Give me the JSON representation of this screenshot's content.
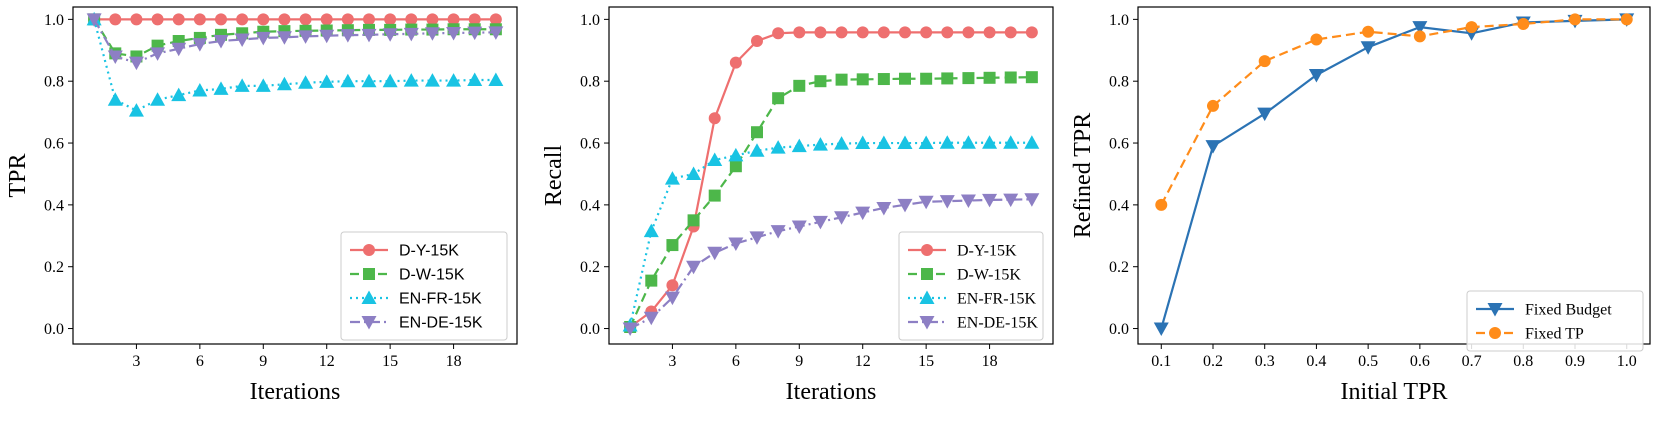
{
  "chart_data": [
    {
      "type": "line",
      "xlabel": "Iterations",
      "ylabel": "TPR",
      "xlim": [
        0,
        21
      ],
      "ylim": [
        -0.05,
        1.04
      ],
      "xticks": [
        3,
        6,
        9,
        12,
        15,
        18
      ],
      "yticks": [
        0.0,
        0.2,
        0.4,
        0.6,
        0.8,
        1.0
      ],
      "ytick_format": 1,
      "legend_position": "lower right",
      "x": [
        1,
        2,
        3,
        4,
        5,
        6,
        7,
        8,
        9,
        10,
        11,
        12,
        13,
        14,
        15,
        16,
        17,
        18,
        19,
        20
      ],
      "series": [
        {
          "name": "D-Y-15K",
          "color": "#ee6f6f",
          "marker": "circle",
          "linestyle": "solid",
          "values": [
            1.0,
            1.0,
            1.0,
            1.0,
            1.0,
            1.0,
            1.0,
            1.0,
            1.0,
            1.0,
            1.0,
            1.0,
            1.0,
            1.0,
            1.0,
            1.0,
            1.0,
            1.0,
            1.0,
            1.0
          ]
        },
        {
          "name": "D-W-15K",
          "color": "#4db74a",
          "marker": "square",
          "linestyle": "dashed",
          "values": [
            1.0,
            0.89,
            0.88,
            0.915,
            0.93,
            0.94,
            0.95,
            0.955,
            0.96,
            0.962,
            0.963,
            0.964,
            0.965,
            0.966,
            0.966,
            0.967,
            0.967,
            0.968,
            0.968,
            0.968
          ]
        },
        {
          "name": "EN-FR-15K",
          "color": "#19c3e3",
          "marker": "triangle-up",
          "linestyle": "dotted",
          "values": [
            1.0,
            0.74,
            0.705,
            0.74,
            0.755,
            0.77,
            0.775,
            0.785,
            0.785,
            0.79,
            0.795,
            0.798,
            0.8,
            0.8,
            0.8,
            0.802,
            0.802,
            0.802,
            0.804,
            0.804
          ]
        },
        {
          "name": "EN-DE-15K",
          "color": "#8d7fc4",
          "marker": "triangle-down",
          "linestyle": "dashdot",
          "values": [
            1.0,
            0.88,
            0.86,
            0.89,
            0.905,
            0.92,
            0.93,
            0.935,
            0.94,
            0.942,
            0.945,
            0.947,
            0.949,
            0.95,
            0.952,
            0.953,
            0.955,
            0.956,
            0.957,
            0.958
          ]
        }
      ]
    },
    {
      "type": "line",
      "xlabel": "Iterations",
      "ylabel": "Recall",
      "xlim": [
        0,
        21
      ],
      "ylim": [
        -0.05,
        1.04
      ],
      "xticks": [
        3,
        6,
        9,
        12,
        15,
        18
      ],
      "yticks": [
        0.0,
        0.2,
        0.4,
        0.6,
        0.8,
        1.0
      ],
      "ytick_format": 1,
      "legend_position": "lower right",
      "x": [
        1,
        2,
        3,
        4,
        5,
        6,
        7,
        8,
        9,
        10,
        11,
        12,
        13,
        14,
        15,
        16,
        17,
        18,
        19,
        20
      ],
      "series": [
        {
          "name": "D-Y-15K",
          "color": "#ee6f6f",
          "marker": "circle",
          "linestyle": "solid",
          "values": [
            0.005,
            0.055,
            0.14,
            0.33,
            0.68,
            0.86,
            0.93,
            0.955,
            0.958,
            0.958,
            0.958,
            0.958,
            0.958,
            0.958,
            0.958,
            0.958,
            0.958,
            0.958,
            0.958,
            0.958
          ]
        },
        {
          "name": "D-W-15K",
          "color": "#4db74a",
          "marker": "square",
          "linestyle": "dashed",
          "values": [
            0.005,
            0.155,
            0.27,
            0.35,
            0.43,
            0.525,
            0.635,
            0.745,
            0.785,
            0.8,
            0.805,
            0.806,
            0.807,
            0.808,
            0.808,
            0.809,
            0.81,
            0.811,
            0.812,
            0.813
          ]
        },
        {
          "name": "EN-FR-15K",
          "color": "#19c3e3",
          "marker": "triangle-up",
          "linestyle": "dotted",
          "values": [
            0.01,
            0.315,
            0.485,
            0.5,
            0.545,
            0.56,
            0.575,
            0.585,
            0.59,
            0.595,
            0.598,
            0.6,
            0.6,
            0.6,
            0.6,
            0.601,
            0.601,
            0.601,
            0.601,
            0.601
          ]
        },
        {
          "name": "EN-DE-15K",
          "color": "#8d7fc4",
          "marker": "triangle-down",
          "linestyle": "dashdot",
          "values": [
            0.0,
            0.035,
            0.1,
            0.2,
            0.245,
            0.275,
            0.295,
            0.315,
            0.33,
            0.345,
            0.36,
            0.375,
            0.39,
            0.4,
            0.41,
            0.412,
            0.414,
            0.416,
            0.417,
            0.418
          ]
        }
      ]
    },
    {
      "type": "line",
      "xlabel": "Initial TPR",
      "ylabel": "Refined TPR",
      "xlim": [
        0.055,
        1.045
      ],
      "ylim": [
        -0.05,
        1.04
      ],
      "xticks": [
        0.1,
        0.2,
        0.3,
        0.4,
        0.5,
        0.6,
        0.7,
        0.8,
        0.9,
        1.0
      ],
      "xtick_format": 1,
      "yticks": [
        0.0,
        0.2,
        0.4,
        0.6,
        0.8,
        1.0
      ],
      "ytick_format": 1,
      "legend_position": "lower right",
      "x": [
        0.1,
        0.2,
        0.3,
        0.4,
        0.5,
        0.6,
        0.7,
        0.8,
        0.9,
        1.0
      ],
      "series": [
        {
          "name": "Fixed Budget",
          "color": "#2b73b4",
          "marker": "triangle-down",
          "linestyle": "solid",
          "values": [
            0.0,
            0.59,
            0.695,
            0.82,
            0.91,
            0.975,
            0.955,
            0.99,
            0.995,
            1.0
          ]
        },
        {
          "name": "Fixed TP",
          "color": "#ff8c1a",
          "marker": "circle",
          "linestyle": "dashed",
          "values": [
            0.4,
            0.72,
            0.865,
            0.935,
            0.96,
            0.945,
            0.975,
            0.985,
            1.0,
            1.0
          ]
        }
      ]
    }
  ]
}
